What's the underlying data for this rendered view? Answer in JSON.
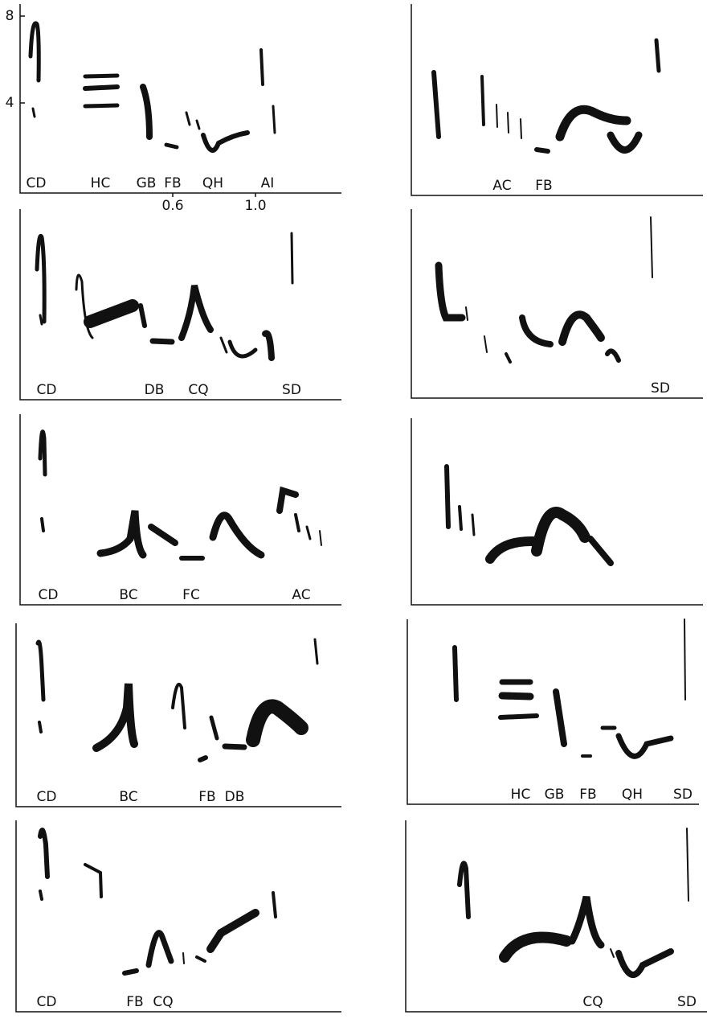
{
  "panels": [
    {
      "labels": [
        "CD",
        "HC",
        "GB",
        "FB",
        "QH",
        "AI"
      ],
      "yticks": [
        "8",
        "4"
      ],
      "xticks": [
        "0.6",
        "1.0"
      ]
    },
    {
      "labels": [
        "AC",
        "FB"
      ]
    },
    {
      "labels": [
        "CD",
        "DB",
        "CQ",
        "SD"
      ]
    },
    {
      "labels": [
        "SD"
      ]
    },
    {
      "labels": [
        "CD",
        "BC",
        "FC",
        "AC"
      ]
    },
    {
      "labels": []
    },
    {
      "labels": [
        "CD",
        "BC",
        "FB",
        "DB"
      ]
    },
    {
      "labels": [
        "HC",
        "GB",
        "FB",
        "QH",
        "SD"
      ]
    },
    {
      "labels": [
        "CD",
        "FB",
        "CQ"
      ]
    },
    {
      "labels": [
        "CQ",
        "SD"
      ]
    }
  ]
}
